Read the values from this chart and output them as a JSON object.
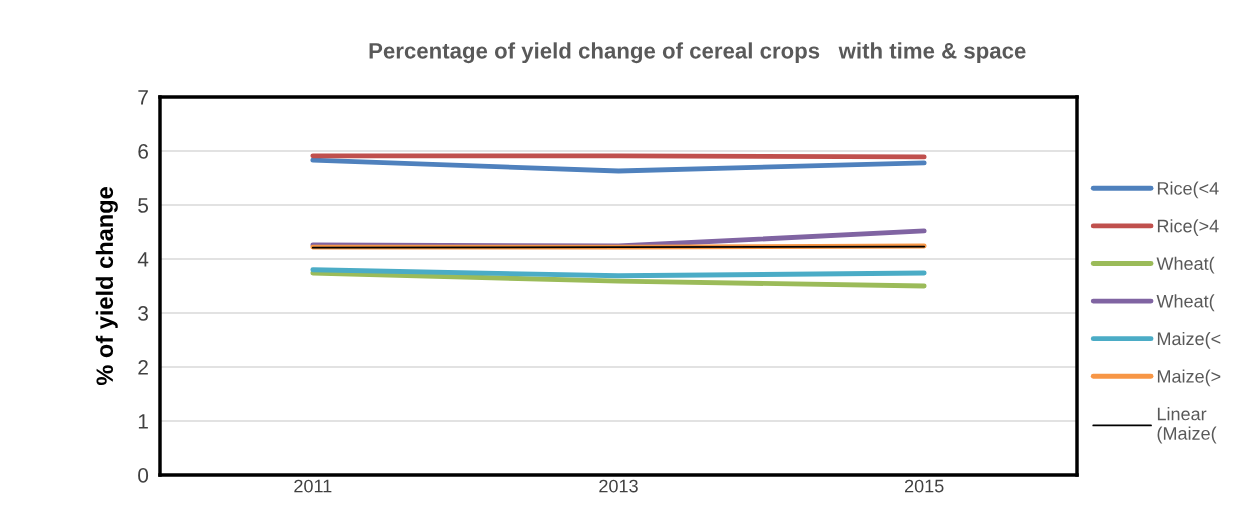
{
  "chart_data": {
    "type": "line",
    "title": "Percentage of yield change of cereal crops   with time & space",
    "ylabel": "% of yield change",
    "categories": [
      "2011",
      "2013",
      "2015"
    ],
    "ylim": [
      0,
      7
    ],
    "yticks": [
      0,
      1,
      2,
      3,
      4,
      5,
      6,
      7
    ],
    "grid": "y",
    "legend": "right",
    "marker": "none",
    "line_style": "solid",
    "series": [
      {
        "name": "Rice(<4",
        "color": "#4f81bd",
        "values": [
          5.83,
          5.63,
          5.78
        ]
      },
      {
        "name": "Rice(>4",
        "color": "#c0504d",
        "values": [
          5.91,
          5.91,
          5.89
        ]
      },
      {
        "name": "Wheat(",
        "color": "#9bbb59",
        "values": [
          3.74,
          3.59,
          3.5
        ]
      },
      {
        "name": "Wheat(",
        "color": "#8064a2",
        "values": [
          4.26,
          4.24,
          4.52
        ]
      },
      {
        "name": "Maize(<",
        "color": "#4bacc6",
        "values": [
          3.8,
          3.69,
          3.74
        ]
      },
      {
        "name": "Maize(>",
        "color": "#f79646",
        "values": [
          4.22,
          4.22,
          4.24
        ]
      },
      {
        "name": "Linear\n(Maize(",
        "color": "#000000",
        "values": [
          4.21,
          4.22,
          4.23
        ],
        "line_style": "solid"
      }
    ]
  }
}
